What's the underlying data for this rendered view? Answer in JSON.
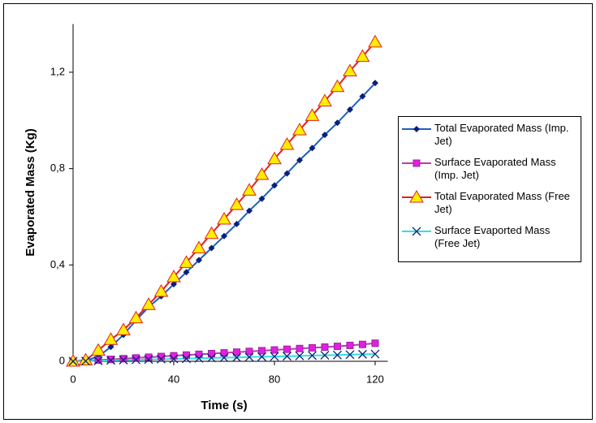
{
  "chart_data": {
    "type": "line",
    "xlabel": "Time (s)",
    "ylabel": "Evaporated Mass (Kg)",
    "x": [
      0,
      5,
      10,
      15,
      20,
      25,
      30,
      35,
      40,
      45,
      50,
      55,
      60,
      65,
      70,
      75,
      80,
      85,
      90,
      95,
      100,
      105,
      110,
      115,
      120
    ],
    "xlim": [
      0,
      125
    ],
    "xticks": [
      0,
      40,
      80,
      120
    ],
    "ylim": [
      0,
      1.4
    ],
    "yticks": [
      0,
      {
        "value": 0.4,
        "label": "0,4"
      },
      {
        "value": 0.8,
        "label": "0,8"
      },
      {
        "value": 1.2,
        "label": "1,2"
      }
    ],
    "grid": false,
    "legend": "right",
    "series": [
      {
        "name": "Total Evaporated Mass (Imp. Jet)",
        "color": "#1f5fbf",
        "marker": "diamond",
        "marker_color": "#0a1f7a",
        "values": [
          0,
          0.003,
          0.02,
          0.06,
          0.11,
          0.17,
          0.225,
          0.27,
          0.32,
          0.37,
          0.42,
          0.47,
          0.52,
          0.57,
          0.625,
          0.675,
          0.73,
          0.78,
          0.835,
          0.885,
          0.94,
          0.99,
          1.045,
          1.1,
          1.155
        ]
      },
      {
        "name": "Surface Evaporated Mass (Imp. Jet)",
        "color": "#b040b0",
        "marker": "square",
        "marker_color": "#e020e0",
        "values": [
          0,
          0.002,
          0.005,
          0.008,
          0.011,
          0.014,
          0.017,
          0.02,
          0.023,
          0.026,
          0.029,
          0.032,
          0.035,
          0.038,
          0.041,
          0.044,
          0.047,
          0.05,
          0.053,
          0.056,
          0.059,
          0.062,
          0.066,
          0.07,
          0.075
        ]
      },
      {
        "name": "Total Evaporated Mass (Free Jet)",
        "color": "#e02020",
        "marker": "triangle",
        "marker_color": "#ffee00",
        "values": [
          0,
          0.005,
          0.045,
          0.09,
          0.13,
          0.18,
          0.235,
          0.29,
          0.35,
          0.41,
          0.47,
          0.53,
          0.59,
          0.65,
          0.71,
          0.775,
          0.84,
          0.9,
          0.96,
          1.02,
          1.08,
          1.14,
          1.205,
          1.265,
          1.325
        ]
      },
      {
        "name": "Surface Evaported Mass (Free Jet)",
        "color": "#30e0e0",
        "marker": "x",
        "marker_color": "#0a1f7a",
        "values": [
          0,
          0.001,
          0.0025,
          0.004,
          0.005,
          0.006,
          0.0075,
          0.009,
          0.01,
          0.011,
          0.0125,
          0.014,
          0.015,
          0.016,
          0.0175,
          0.019,
          0.02,
          0.021,
          0.0225,
          0.024,
          0.025,
          0.026,
          0.0275,
          0.029,
          0.03
        ]
      }
    ]
  }
}
